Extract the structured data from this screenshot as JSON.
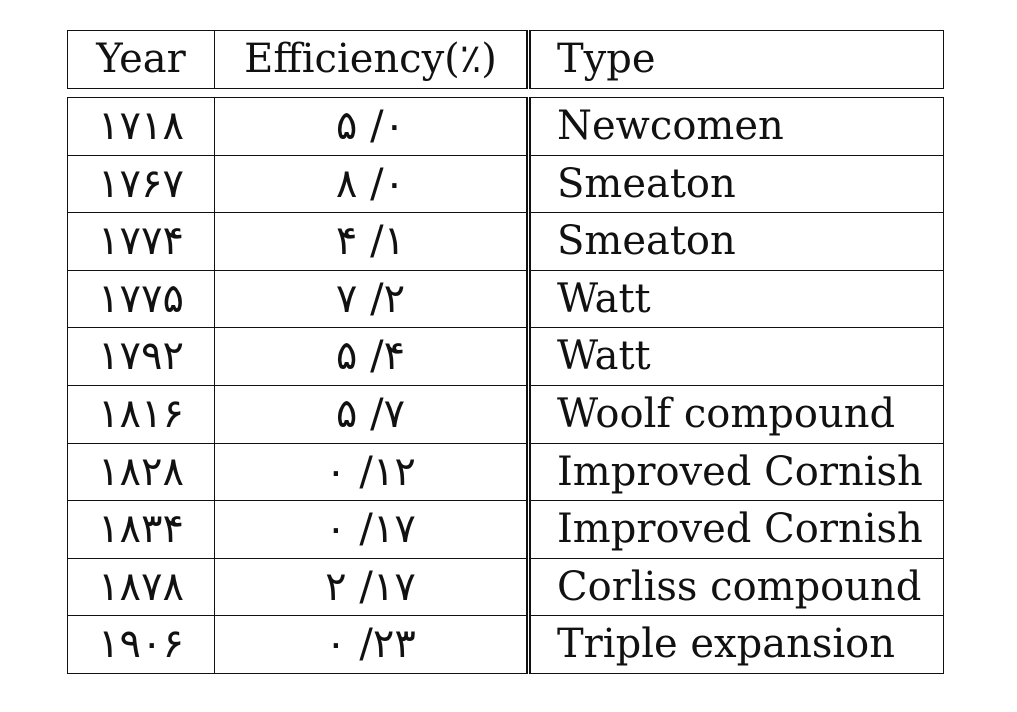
{
  "table": {
    "headers": {
      "year": "Year",
      "efficiency": "Efficiency(٪)",
      "type": "Type"
    },
    "rows": [
      {
        "year": "۱۷۱۸",
        "efficiency": "۰/ ۵",
        "type": "Newcomen"
      },
      {
        "year": "۱۷۶۷",
        "efficiency": "۰/ ۸",
        "type": "Smeaton"
      },
      {
        "year": "۱۷۷۴",
        "efficiency": "۱/ ۴",
        "type": "Smeaton"
      },
      {
        "year": "۱۷۷۵",
        "efficiency": "۲/ ۷",
        "type": "Watt"
      },
      {
        "year": "۱۷۹۲",
        "efficiency": "۴/ ۵",
        "type": "Watt"
      },
      {
        "year": "۱۸۱۶",
        "efficiency": "۷/ ۵",
        "type": "Woolf compound"
      },
      {
        "year": "۱۸۲۸",
        "efficiency": "۱۲/ ۰",
        "type": "Improved Cornish"
      },
      {
        "year": "۱۸۳۴",
        "efficiency": "۱۷/ ۰",
        "type": "Improved Cornish"
      },
      {
        "year": "۱۸۷۸",
        "efficiency": "۱۷/ ۲",
        "type": "Corliss compound"
      },
      {
        "year": "۱۹۰۶",
        "efficiency": "۲۳/ ۰",
        "type": "Triple expansion"
      }
    ]
  }
}
